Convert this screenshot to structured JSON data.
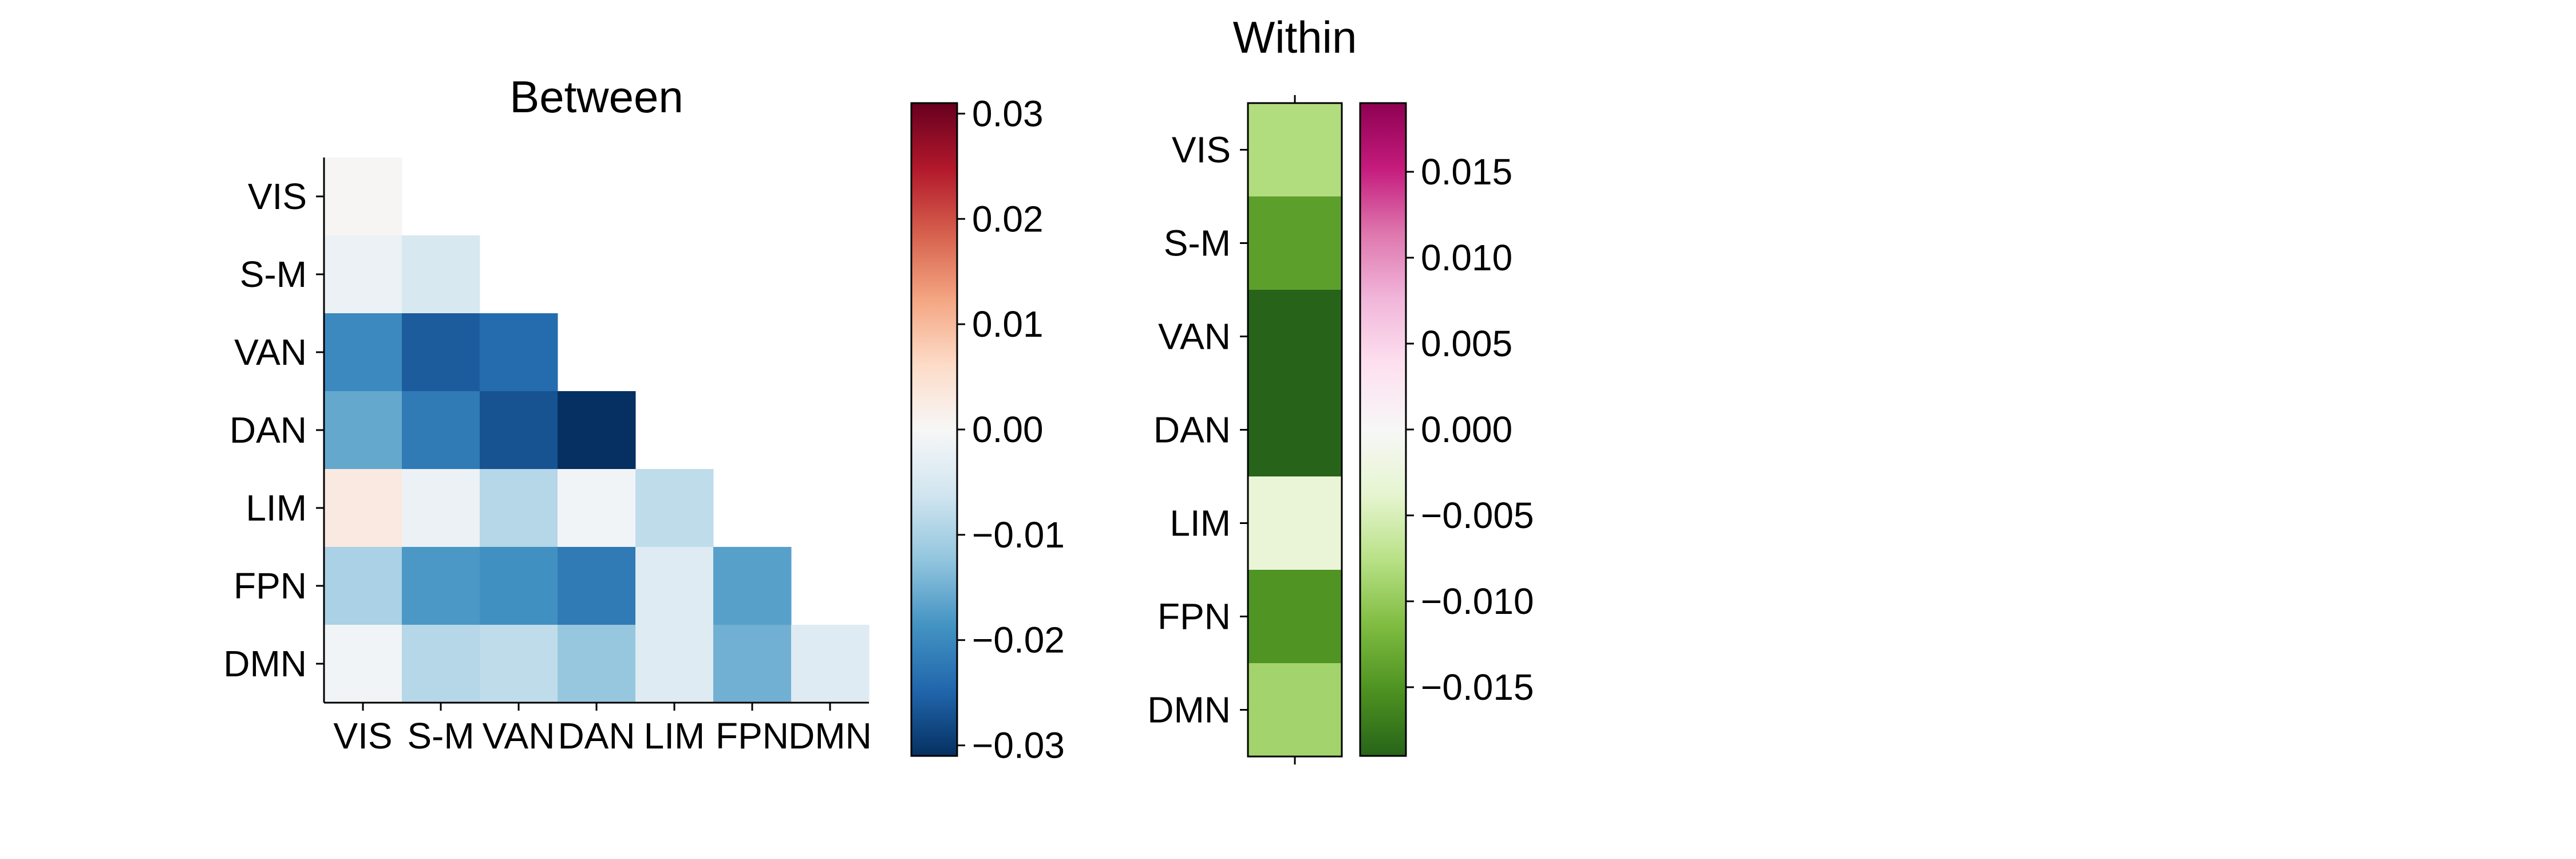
{
  "chart_data": [
    {
      "type": "heatmap",
      "title": "Between",
      "xlabel": "",
      "ylabel": "",
      "rows": [
        "VIS",
        "S-M",
        "VAN",
        "DAN",
        "LIM",
        "FPN",
        "DMN"
      ],
      "columns": [
        "VIS",
        "S-M",
        "VAN",
        "DAN",
        "LIM",
        "FPN",
        "DMN"
      ],
      "mask": "upper-triangle",
      "values": [
        [
          0.0005,
          null,
          null,
          null,
          null,
          null,
          null
        ],
        [
          -0.002,
          -0.005,
          null,
          null,
          null,
          null,
          null
        ],
        [
          -0.02,
          -0.026,
          -0.024,
          null,
          null,
          null,
          null
        ],
        [
          -0.016,
          -0.022,
          -0.027,
          -0.031,
          null,
          null,
          null
        ],
        [
          0.003,
          -0.002,
          -0.009,
          -0.001,
          -0.008,
          null,
          null
        ],
        [
          -0.01,
          -0.018,
          -0.019,
          -0.022,
          -0.004,
          -0.017,
          null
        ],
        [
          -0.001,
          -0.009,
          -0.008,
          -0.012,
          -0.004,
          -0.015,
          -0.004
        ]
      ],
      "colormap": "RdBu_r",
      "colorbar": {
        "vmin": -0.031,
        "vmax": 0.031,
        "ticks": [
          0.03,
          0.02,
          0.01,
          0.0,
          -0.01,
          -0.02,
          -0.03
        ],
        "tick_labels": [
          "0.03",
          "0.02",
          "0.01",
          "0.00",
          "−0.01",
          "−0.02",
          "−0.03"
        ]
      }
    },
    {
      "type": "heatmap",
      "title": "Within",
      "xlabel": "",
      "ylabel": "",
      "rows": [
        "VIS",
        "S-M",
        "VAN",
        "DAN",
        "LIM",
        "FPN",
        "DMN"
      ],
      "values": [
        -0.008,
        -0.014,
        -0.019,
        -0.019,
        -0.003,
        -0.015,
        -0.009
      ],
      "colormap": "PiYG",
      "colorbar": {
        "vmin": -0.019,
        "vmax": 0.019,
        "ticks": [
          0.015,
          0.01,
          0.005,
          0.0,
          -0.005,
          -0.01,
          -0.015
        ],
        "tick_labels": [
          "0.015",
          "0.010",
          "0.005",
          "0.000",
          "−0.005",
          "−0.010",
          "−0.015"
        ]
      }
    }
  ]
}
